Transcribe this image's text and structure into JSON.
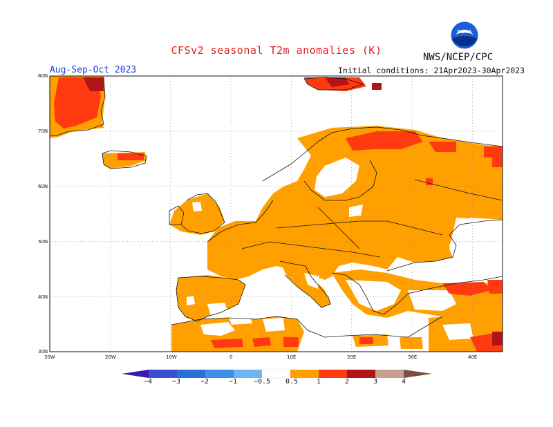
{
  "title": "CFSv2 seasonal T2m anomalies (K)",
  "agency": "NWS/NCEP/CPC",
  "season": "Aug-Sep-Oct 2023",
  "initial_conditions": "Initial conditions: 21Apr2023-30Apr2023",
  "logo_text": "NOAA",
  "lat_labels": [
    "80N",
    "70N",
    "60N",
    "50N",
    "40N",
    "30N"
  ],
  "lon_labels": [
    "30W",
    "20W",
    "10W",
    "0",
    "10E",
    "20E",
    "30E",
    "40E"
  ],
  "colorbar": {
    "ticks": [
      "−4",
      "−3",
      "−2",
      "−1",
      "−0.5",
      "0.5",
      "1",
      "2",
      "3",
      "4"
    ],
    "colors": [
      "#3a1aa8",
      "#3b4fd0",
      "#2a6fd6",
      "#3c8fe6",
      "#6cb4f4",
      "#ffffff",
      "#ffa000",
      "#ff3a10",
      "#b01414",
      "#7a1010",
      "#c8a090",
      "#7a5040"
    ]
  },
  "legend_colors": {
    "anom_0.5_1": "#ffa000",
    "anom_1_2": "#ff3a10",
    "anom_2_3": "#b01414",
    "anom_3_4": "#7a1010"
  }
}
